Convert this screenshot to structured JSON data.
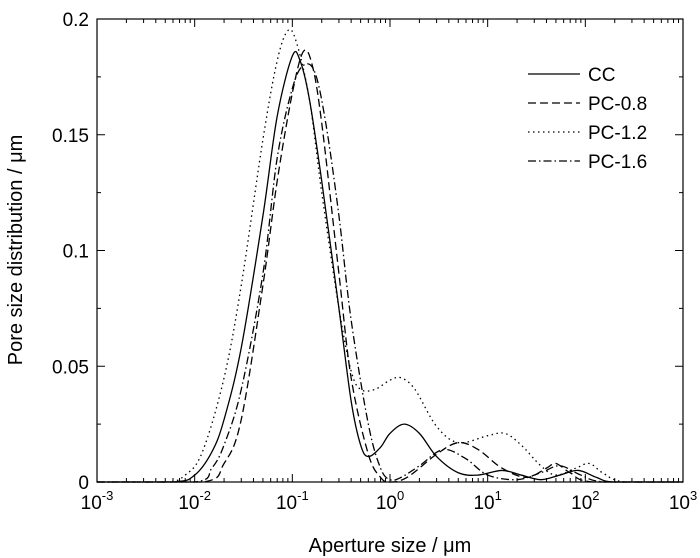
{
  "chart_data": {
    "type": "line",
    "xscale": "log",
    "xlim": [
      0.001,
      1000
    ],
    "ylim": [
      0,
      0.2
    ],
    "xlabel": "Aperture size / μm",
    "ylabel": "Pore size distribution / μm",
    "x_ticks": [
      {
        "base": "10",
        "exp": "-3",
        "value": 0.001
      },
      {
        "base": "10",
        "exp": "-2",
        "value": 0.01
      },
      {
        "base": "10",
        "exp": "-1",
        "value": 0.1
      },
      {
        "base": "10",
        "exp": "0",
        "value": 1
      },
      {
        "base": "10",
        "exp": "1",
        "value": 10
      },
      {
        "base": "10",
        "exp": "2",
        "value": 100
      },
      {
        "base": "10",
        "exp": "3",
        "value": 1000
      }
    ],
    "y_ticks": [
      {
        "label": "0",
        "value": 0
      },
      {
        "label": "0.05",
        "value": 0.05
      },
      {
        "label": "0.1",
        "value": 0.1
      },
      {
        "label": "0.15",
        "value": 0.15
      },
      {
        "label": "0.2",
        "value": 0.2
      }
    ],
    "legend_position": "top-right",
    "series": [
      {
        "name": "CC",
        "dash": "solid",
        "points": [
          [
            0.001,
            0
          ],
          [
            0.006,
            0
          ],
          [
            0.01,
            0.003
          ],
          [
            0.015,
            0.013
          ],
          [
            0.02,
            0.027
          ],
          [
            0.03,
            0.058
          ],
          [
            0.05,
            0.115
          ],
          [
            0.07,
            0.158
          ],
          [
            0.1,
            0.184
          ],
          [
            0.12,
            0.182
          ],
          [
            0.15,
            0.165
          ],
          [
            0.2,
            0.13
          ],
          [
            0.3,
            0.075
          ],
          [
            0.4,
            0.035
          ],
          [
            0.5,
            0.016
          ],
          [
            0.6,
            0.011
          ],
          [
            0.8,
            0.015
          ],
          [
            1.0,
            0.021
          ],
          [
            1.4,
            0.025
          ],
          [
            2.0,
            0.021
          ],
          [
            3.0,
            0.011
          ],
          [
            5.0,
            0.004
          ],
          [
            8.0,
            0.003
          ],
          [
            14,
            0.005
          ],
          [
            22,
            0.003
          ],
          [
            35,
            0.001
          ],
          [
            55,
            0.003
          ],
          [
            85,
            0.005
          ],
          [
            130,
            0.002
          ],
          [
            200,
            0
          ],
          [
            1000,
            0
          ]
        ]
      },
      {
        "name": "PC-0.8",
        "dash": "dashed",
        "points": [
          [
            0.001,
            0
          ],
          [
            0.012,
            0
          ],
          [
            0.02,
            0.008
          ],
          [
            0.03,
            0.027
          ],
          [
            0.05,
            0.085
          ],
          [
            0.07,
            0.13
          ],
          [
            0.1,
            0.168
          ],
          [
            0.13,
            0.186
          ],
          [
            0.16,
            0.18
          ],
          [
            0.2,
            0.155
          ],
          [
            0.3,
            0.09
          ],
          [
            0.4,
            0.045
          ],
          [
            0.6,
            0.012
          ],
          [
            0.8,
            0.002
          ],
          [
            1.0,
            0
          ],
          [
            1.5,
            0.002
          ],
          [
            3.0,
            0.012
          ],
          [
            5.0,
            0.017
          ],
          [
            8.0,
            0.014
          ],
          [
            14,
            0.006
          ],
          [
            25,
            0.002
          ],
          [
            40,
            0.006
          ],
          [
            50,
            0.008
          ],
          [
            70,
            0.004
          ],
          [
            120,
            0
          ],
          [
            1000,
            0
          ]
        ]
      },
      {
        "name": "PC-1.2",
        "dash": "dotted",
        "points": [
          [
            0.001,
            0
          ],
          [
            0.005,
            0
          ],
          [
            0.008,
            0.003
          ],
          [
            0.012,
            0.013
          ],
          [
            0.02,
            0.045
          ],
          [
            0.03,
            0.085
          ],
          [
            0.05,
            0.148
          ],
          [
            0.07,
            0.182
          ],
          [
            0.09,
            0.195
          ],
          [
            0.11,
            0.19
          ],
          [
            0.15,
            0.165
          ],
          [
            0.2,
            0.125
          ],
          [
            0.3,
            0.075
          ],
          [
            0.4,
            0.048
          ],
          [
            0.5,
            0.04
          ],
          [
            0.7,
            0.04
          ],
          [
            1.0,
            0.044
          ],
          [
            1.3,
            0.045
          ],
          [
            1.8,
            0.04
          ],
          [
            3.0,
            0.024
          ],
          [
            5.0,
            0.017
          ],
          [
            10,
            0.02
          ],
          [
            15,
            0.021
          ],
          [
            22,
            0.016
          ],
          [
            35,
            0.007
          ],
          [
            50,
            0.003
          ],
          [
            80,
            0.006
          ],
          [
            110,
            0.008
          ],
          [
            150,
            0.004
          ],
          [
            250,
            0
          ],
          [
            1000,
            0
          ]
        ]
      },
      {
        "name": "PC-1.6",
        "dash": "dashdot",
        "points": [
          [
            0.001,
            0
          ],
          [
            0.01,
            0
          ],
          [
            0.015,
            0.006
          ],
          [
            0.02,
            0.016
          ],
          [
            0.03,
            0.04
          ],
          [
            0.05,
            0.09
          ],
          [
            0.07,
            0.14
          ],
          [
            0.1,
            0.17
          ],
          [
            0.13,
            0.18
          ],
          [
            0.17,
            0.177
          ],
          [
            0.22,
            0.155
          ],
          [
            0.3,
            0.115
          ],
          [
            0.4,
            0.07
          ],
          [
            0.6,
            0.025
          ],
          [
            0.8,
            0.006
          ],
          [
            1.0,
            0.001
          ],
          [
            1.3,
            0.002
          ],
          [
            2.0,
            0.007
          ],
          [
            3.5,
            0.014
          ],
          [
            6.0,
            0.01
          ],
          [
            10,
            0.003
          ],
          [
            20,
            0.001
          ],
          [
            35,
            0.004
          ],
          [
            55,
            0.007
          ],
          [
            90,
            0.003
          ],
          [
            160,
            0
          ],
          [
            1000,
            0
          ]
        ]
      }
    ]
  }
}
